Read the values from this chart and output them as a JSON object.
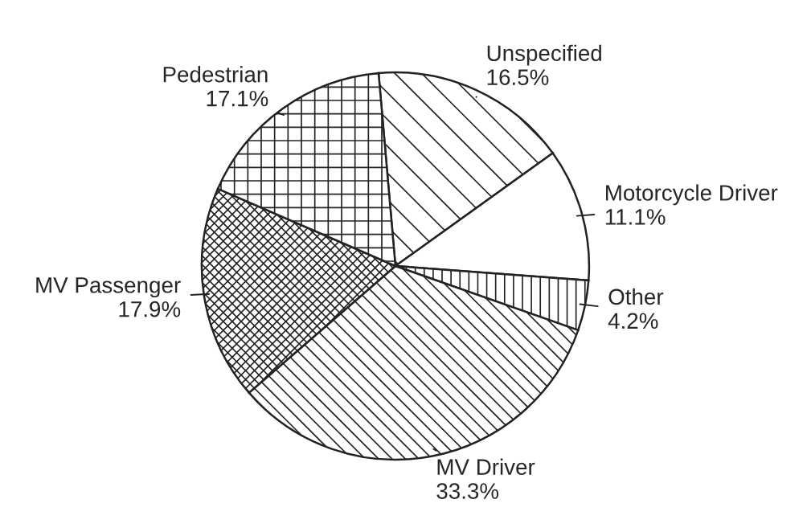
{
  "chart_data": {
    "type": "pie",
    "categories": [
      "Unspecified",
      "Motorcycle Driver",
      "Other",
      "MV Driver",
      "MV Passenger",
      "Pedestrian"
    ],
    "values": [
      16.5,
      11.1,
      4.2,
      33.3,
      17.9,
      17.1
    ],
    "value_labels": [
      "16.5%",
      "11.1%",
      "4.2%",
      "33.3%",
      "17.9%",
      "17.1%"
    ],
    "colors": [
      "#ffffff",
      "#ffffff",
      "#ffffff",
      "#ffffff",
      "#ffffff",
      "#ffffff"
    ],
    "legend": false
  }
}
